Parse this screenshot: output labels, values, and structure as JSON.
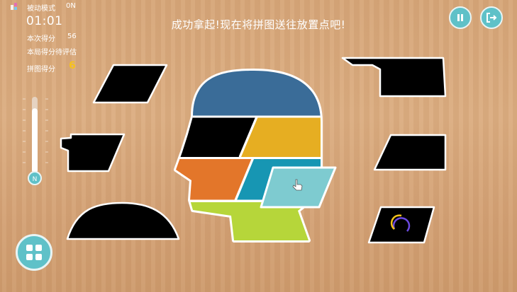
{
  "hud": {
    "mode_label": "被动模式",
    "mode_value": "0N",
    "timer": "01:01",
    "this_score_label": "本次得分",
    "this_score_value": "56",
    "round_score_label": "本局得分待评估",
    "puzzle_score_label": "拼图得分",
    "puzzle_score_value": "6"
  },
  "message": "成功拿起!现在将拼图送往放置点吧!",
  "thermometer": {
    "label": "N",
    "level": 0.85
  },
  "icons": {
    "mode": "mode-icon",
    "pause": "pause-icon",
    "exit": "exit-icon",
    "menu": "grid-menu-icon",
    "cursor": "hand-cursor-icon",
    "loading": "loading-spinner-icon"
  },
  "colors": {
    "accent": "#5fc1c8",
    "score": "#f6c21c",
    "blue": "#3a6c98",
    "yellow": "#e6ae22",
    "orange": "#e3762a",
    "teal": "#1796b3",
    "lime": "#b6d63a",
    "held": "#7ecbd0",
    "slot": "#000000"
  }
}
